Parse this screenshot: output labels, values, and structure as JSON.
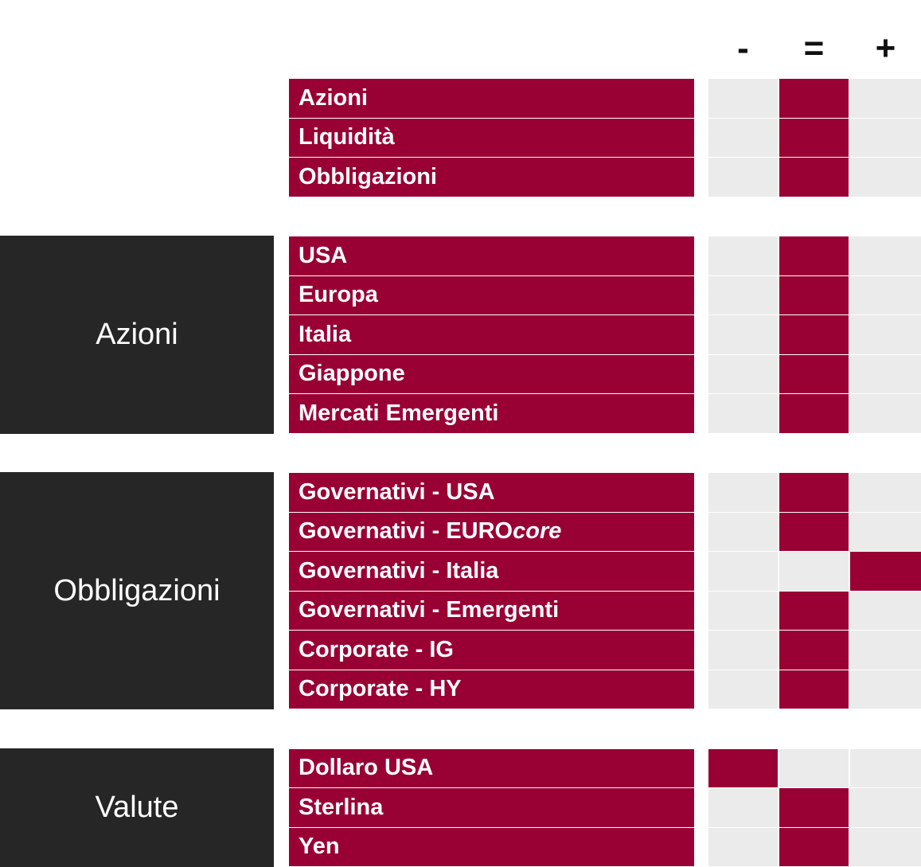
{
  "header": {
    "columns": [
      "-",
      "=",
      "+"
    ]
  },
  "groups": [
    {
      "rows": [
        {
          "label": "Azioni",
          "rating": "="
        },
        {
          "label": "Liquidità",
          "rating": "="
        },
        {
          "label": "Obbligazioni",
          "rating": "="
        }
      ]
    },
    {
      "label": "Azioni",
      "rows": [
        {
          "label": "USA",
          "rating": "="
        },
        {
          "label": "Europa",
          "rating": "="
        },
        {
          "label": "Italia",
          "rating": "="
        },
        {
          "label": "Giappone",
          "rating": "="
        },
        {
          "label": "Mercati Emergenti",
          "rating": "="
        }
      ]
    },
    {
      "label": "Obbligazioni",
      "rows": [
        {
          "label": "Governativi - USA",
          "rating": "="
        },
        {
          "label": "Governativi - EURO",
          "label_italic": "core",
          "rating": "="
        },
        {
          "label": "Governativi - Italia",
          "rating": "+"
        },
        {
          "label": "Governativi - Emergenti",
          "rating": "="
        },
        {
          "label": "Corporate - IG",
          "rating": "="
        },
        {
          "label": "Corporate - HY",
          "rating": "="
        }
      ]
    },
    {
      "label": "Valute",
      "rows": [
        {
          "label": "Dollaro USA",
          "rating": "-"
        },
        {
          "label": "Sterlina",
          "rating": "="
        },
        {
          "label": "Yen",
          "rating": "="
        }
      ]
    }
  ]
}
